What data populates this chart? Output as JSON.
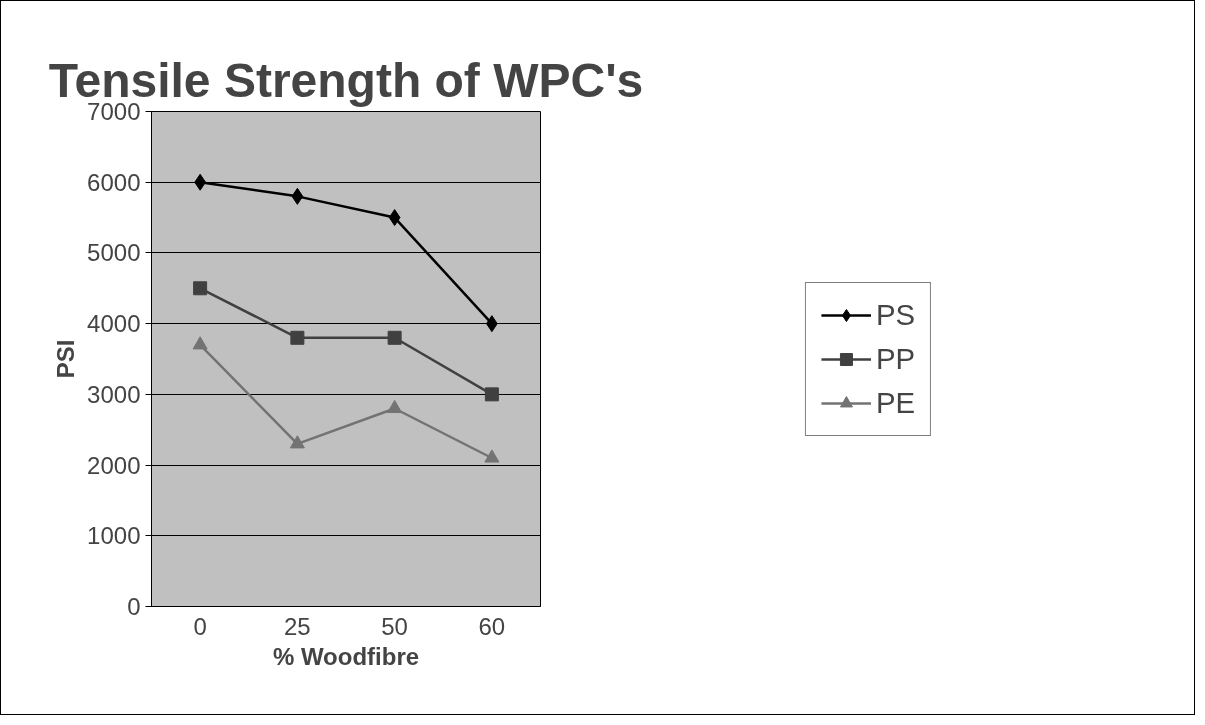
{
  "chart_data": {
    "type": "line",
    "title": "Tensile Strength of WPC's",
    "xlabel": "% Woodfibre",
    "ylabel": "PSI",
    "categories": [
      "0",
      "25",
      "50",
      "60"
    ],
    "series": [
      {
        "name": "PS",
        "color": "#000000",
        "marker": "diamond",
        "values": [
          6000,
          5800,
          5500,
          4000
        ]
      },
      {
        "name": "PP",
        "color": "#404040",
        "marker": "square",
        "values": [
          4500,
          3800,
          3800,
          3000
        ]
      },
      {
        "name": "PE",
        "color": "#737373",
        "marker": "triangle",
        "values": [
          3700,
          2300,
          2800,
          2100
        ]
      }
    ],
    "ylim": [
      0,
      7000
    ],
    "yticks": [
      0,
      1000,
      2000,
      3000,
      4000,
      5000,
      6000,
      7000
    ],
    "grid": "y",
    "legend": "right",
    "line_style": "solid"
  }
}
